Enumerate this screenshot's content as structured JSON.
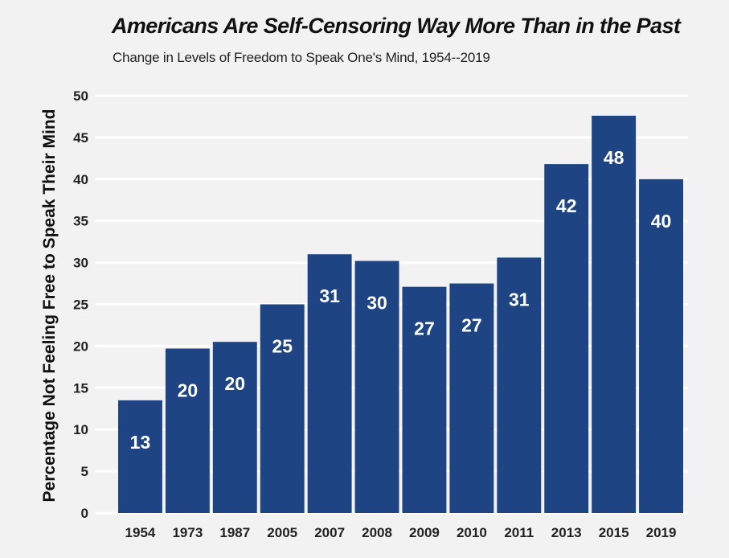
{
  "chart_data": {
    "type": "bar",
    "title": "Americans Are Self-Censoring Way More Than in the Past",
    "subtitle": "Change in Levels of Freedom to Speak One's Mind, 1954--2019",
    "xlabel": "",
    "ylabel": "Percentage Not Feeling Free to Speak Their Mind",
    "ylim": [
      0,
      50
    ],
    "yticks": [
      0,
      5,
      10,
      15,
      20,
      25,
      30,
      35,
      40,
      45,
      50
    ],
    "grid": true,
    "legend": "none",
    "categories": [
      "1954",
      "1973",
      "1987",
      "2005",
      "2007",
      "2008",
      "2009",
      "2010",
      "2011",
      "2013",
      "2015",
      "2019"
    ],
    "values": [
      13.5,
      19.7,
      20.5,
      25.0,
      31.0,
      30.2,
      27.1,
      27.5,
      30.6,
      41.8,
      47.6,
      40.0
    ],
    "data_labels": [
      "13",
      "20",
      "20",
      "25",
      "31",
      "30",
      "27",
      "27",
      "31",
      "42",
      "48",
      "40"
    ],
    "colors": {
      "bar": "#1f4483",
      "background": "#f2f2f2",
      "grid": "#ffffff",
      "label": "#ffffff"
    }
  }
}
